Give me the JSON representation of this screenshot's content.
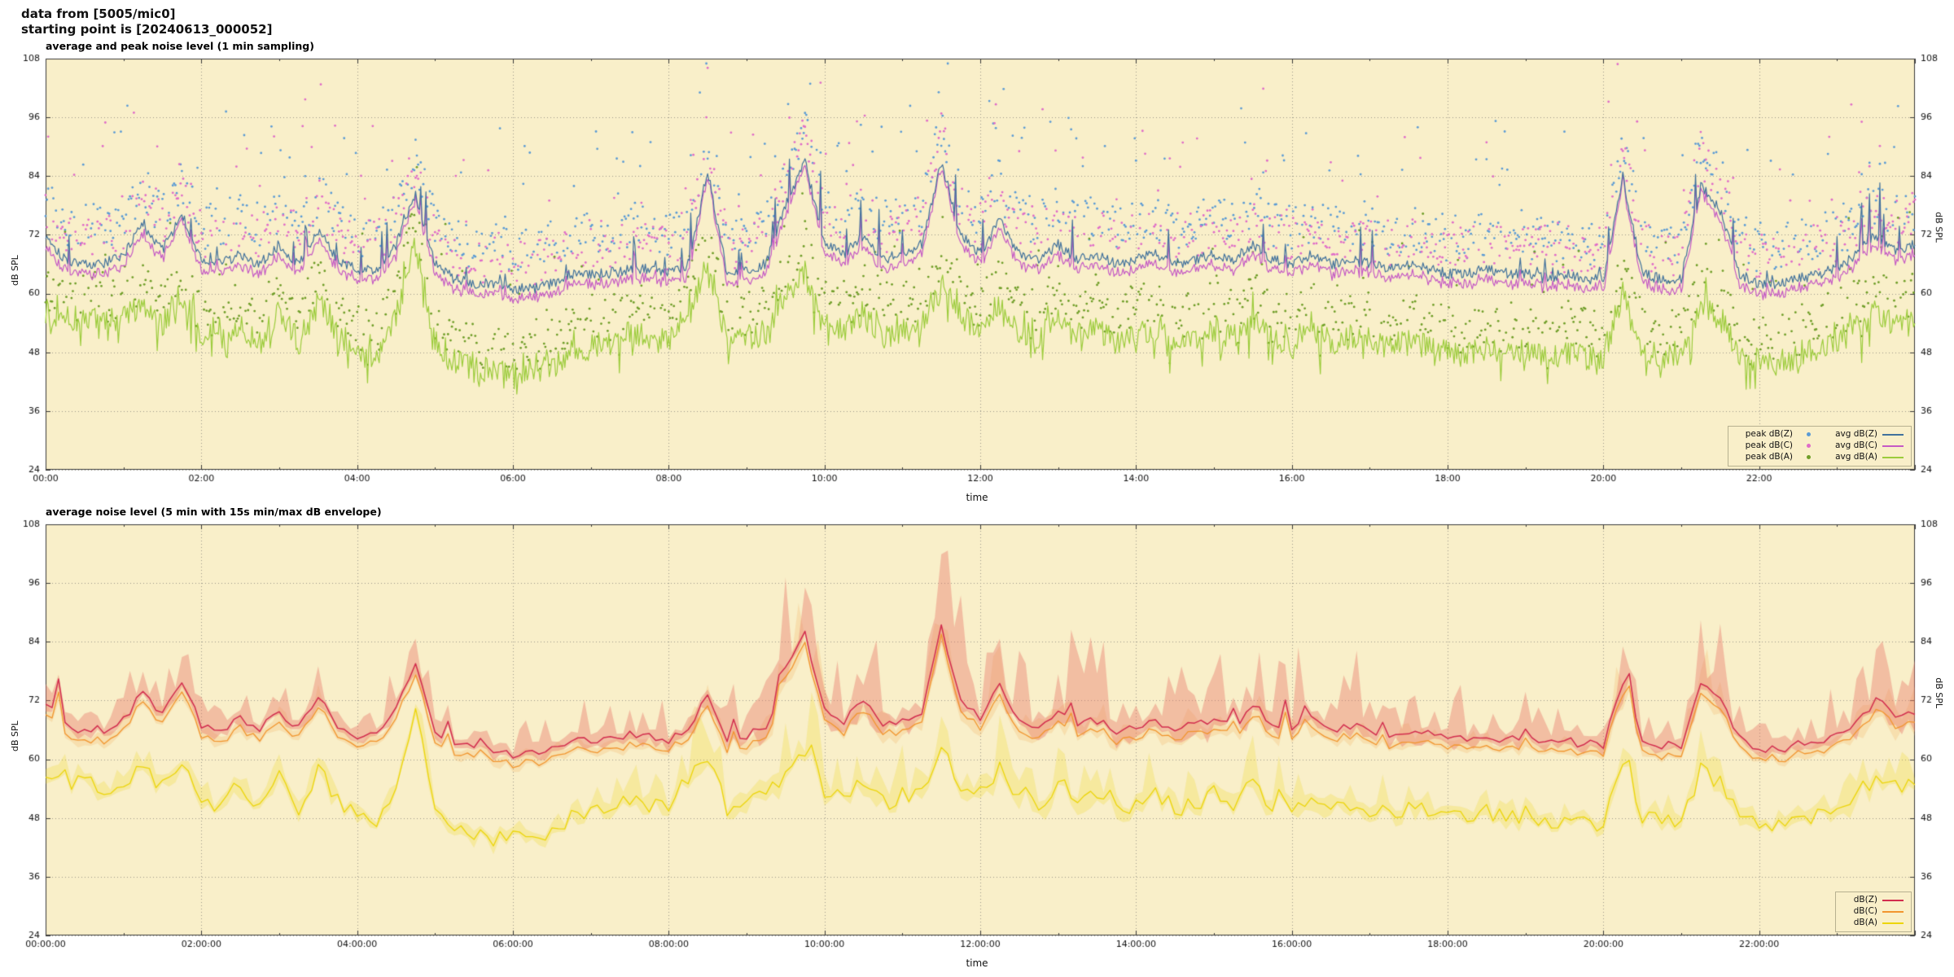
{
  "header": {
    "line1": "data from [5005/mic0]",
    "line2": "starting point is [20240613_000052]"
  },
  "colors": {
    "page_bg": "#ffffff",
    "plot_bg": "#f9efc9",
    "grid": "#9b988a",
    "axis": "#3a3a3a",
    "text": "#111111"
  },
  "chart_data": [
    {
      "type": "line+scatter",
      "title": "average and peak noise level (1 min sampling)",
      "xlabel": "time",
      "ylabel": "dB SPL",
      "ylim": [
        24,
        108
      ],
      "yticks": [
        24,
        36,
        48,
        60,
        72,
        84,
        96,
        108
      ],
      "xtick_minutes": [
        0,
        120,
        240,
        360,
        480,
        600,
        720,
        840,
        960,
        1080,
        1200,
        1320
      ],
      "xtick_labels": [
        "00:00",
        "02:00",
        "04:00",
        "06:00",
        "08:00",
        "10:00",
        "12:00",
        "14:00",
        "16:00",
        "18:00",
        "20:00",
        "22:00"
      ],
      "minutes_total": 1440,
      "anchor_step_min": 15,
      "grid": "dotted",
      "legend_position": "bottom-right",
      "lines": [
        {
          "name": "avg dB(Z)",
          "color": "#41719c",
          "jitter": 1.1,
          "spike_prob": 0.06,
          "spike_amp": 7,
          "anchors": [
            72,
            67,
            66,
            66,
            68,
            74,
            69,
            76,
            67,
            66,
            68,
            66,
            70,
            66,
            73,
            67,
            65,
            65,
            70,
            80,
            66,
            63,
            62,
            62,
            61,
            61,
            62,
            64,
            64,
            64,
            65,
            65,
            64,
            66,
            85,
            64,
            65,
            66,
            78,
            87,
            70,
            68,
            72,
            67,
            68,
            70,
            87,
            72,
            68,
            75,
            68,
            67,
            70,
            67,
            68,
            66,
            67,
            68,
            66,
            67,
            68,
            67,
            70,
            67,
            66,
            68,
            66,
            67,
            66,
            65,
            66,
            65,
            64,
            64,
            65,
            64,
            64,
            63,
            64,
            63,
            63,
            84,
            64,
            63,
            63,
            82,
            77,
            64,
            62,
            62,
            63,
            64,
            65,
            68,
            72,
            69,
            70
          ]
        },
        {
          "name": "avg dB(C)",
          "color": "#c55ac5",
          "jitter": 0.5,
          "follow_index": 0,
          "follow_scale": 0.9,
          "anchors": [
            70,
            65,
            64,
            64,
            66,
            72,
            67,
            75,
            65,
            64,
            66,
            64,
            68,
            64,
            71,
            65,
            63,
            63,
            68,
            79,
            64,
            61,
            60,
            60,
            59,
            59,
            60,
            62,
            62,
            62,
            63,
            63,
            62,
            64,
            84,
            62,
            63,
            64,
            76,
            86,
            68,
            66,
            70,
            65,
            66,
            68,
            86,
            70,
            66,
            73,
            66,
            65,
            68,
            65,
            66,
            64,
            65,
            66,
            64,
            65,
            66,
            65,
            68,
            65,
            64,
            66,
            64,
            65,
            64,
            63,
            64,
            63,
            62,
            62,
            63,
            62,
            62,
            61,
            62,
            61,
            61,
            83,
            62,
            61,
            61,
            81,
            75,
            62,
            60,
            60,
            61,
            62,
            63,
            66,
            70,
            67,
            68
          ]
        },
        {
          "name": "avg dB(A)",
          "color": "#9ccc3c",
          "jitter": 2.7,
          "spike_prob": 0.1,
          "spike_amp": 9,
          "dip_prob": 0.1,
          "dip_amp": 6,
          "anchors": [
            56,
            55,
            55,
            54,
            55,
            58,
            54,
            60,
            52,
            50,
            53,
            50,
            56,
            50,
            58,
            52,
            48,
            47,
            55,
            70,
            50,
            46,
            45,
            44,
            44,
            44,
            45,
            48,
            49,
            50,
            52,
            51,
            50,
            56,
            66,
            50,
            51,
            52,
            60,
            64,
            54,
            52,
            56,
            51,
            52,
            54,
            62,
            55,
            53,
            58,
            52,
            51,
            55,
            52,
            53,
            50,
            51,
            53,
            50,
            51,
            53,
            51,
            55,
            51,
            50,
            53,
            50,
            51,
            50,
            49,
            50,
            49,
            48,
            48,
            49,
            48,
            48,
            47,
            48,
            47,
            47,
            60,
            48,
            47,
            47,
            58,
            55,
            48,
            46,
            46,
            47,
            48,
            50,
            53,
            56,
            54,
            55
          ]
        }
      ],
      "peaks": [
        {
          "name": "peak dB(Z)",
          "color": "#5b9bd5",
          "base_index": 0,
          "offset_min": 3,
          "offset_rand": 9,
          "burst_prob": 0.08,
          "burst_min": 8,
          "burst_rand": 14,
          "typical_range_db": [
            70,
            95
          ]
        },
        {
          "name": "peak dB(C)",
          "color": "#e06cc8",
          "base_index": 1,
          "offset_min": 3,
          "offset_rand": 9,
          "burst_prob": 0.08,
          "burst_min": 8,
          "burst_rand": 14,
          "typical_range_db": [
            68,
            93
          ]
        },
        {
          "name": "peak dB(A)",
          "color": "#6f9e28",
          "base_index": 2,
          "offset_min": 2,
          "offset_rand": 7,
          "burst_prob": 0.06,
          "burst_min": 6,
          "burst_rand": 10,
          "typical_range_db": [
            48,
            76
          ]
        }
      ]
    },
    {
      "type": "line+envelope",
      "title": "average noise level (5 min with 15s min/max dB envelope)",
      "xlabel": "time",
      "ylabel": "dB SPL",
      "ylim": [
        24,
        108
      ],
      "yticks": [
        24,
        36,
        48,
        60,
        72,
        84,
        96,
        108
      ],
      "xtick_minutes": [
        0,
        120,
        240,
        360,
        480,
        600,
        720,
        840,
        960,
        1080,
        1200,
        1320
      ],
      "xtick_labels": [
        "00:00:00",
        "02:00:00",
        "04:00:00",
        "06:00:00",
        "08:00:00",
        "10:00:00",
        "12:00:00",
        "14:00:00",
        "16:00:00",
        "18:00:00",
        "20:00:00",
        "22:00:00"
      ],
      "minutes_total": 1440,
      "anchor_step_min": 15,
      "sample_step_min": 5,
      "grid": "dotted",
      "legend_position": "bottom-right",
      "lines": [
        {
          "name": "dB(Z)",
          "color": "#d22d4e",
          "jitter": 0.9,
          "spike_prob": 0.06,
          "spike_amp": 6,
          "envelope": {
            "color": "rgba(232,118,106,0.40)",
            "up": 12.5,
            "down": 3,
            "ref": 60
          },
          "anchors": [
            72,
            67,
            66,
            66,
            68,
            74,
            69,
            76,
            67,
            66,
            68,
            66,
            70,
            66,
            73,
            67,
            65,
            65,
            70,
            79,
            66,
            63,
            62,
            62,
            61,
            61,
            62,
            64,
            64,
            64,
            65,
            65,
            64,
            66,
            73,
            64,
            65,
            66,
            78,
            86,
            70,
            68,
            72,
            67,
            68,
            70,
            87,
            72,
            68,
            75,
            68,
            67,
            70,
            67,
            68,
            66,
            67,
            68,
            66,
            67,
            68,
            67,
            70,
            67,
            66,
            68,
            66,
            67,
            66,
            65,
            66,
            65,
            64,
            64,
            65,
            64,
            64,
            63,
            64,
            63,
            63,
            76,
            64,
            63,
            63,
            75,
            72,
            64,
            62,
            62,
            63,
            64,
            65,
            68,
            72,
            69,
            70
          ]
        },
        {
          "name": "dB(C)",
          "color": "#f2952e",
          "jitter": 0.4,
          "follow_index": 0,
          "follow_scale": 0.9,
          "envelope": {
            "color": "rgba(240,160,70,0.20)",
            "up": 6,
            "down": 2,
            "ref": 60
          },
          "anchors": [
            70,
            65,
            64,
            64,
            66,
            72,
            67,
            74,
            65,
            64,
            66,
            64,
            68,
            64,
            71,
            65,
            63,
            63,
            68,
            77,
            64,
            61,
            60,
            60,
            59,
            59,
            60,
            62,
            62,
            62,
            63,
            63,
            62,
            64,
            71,
            62,
            63,
            64,
            76,
            84,
            68,
            66,
            70,
            65,
            66,
            68,
            85,
            70,
            66,
            73,
            66,
            65,
            68,
            65,
            66,
            64,
            65,
            66,
            64,
            65,
            66,
            65,
            68,
            65,
            64,
            66,
            64,
            65,
            64,
            63,
            64,
            63,
            62,
            62,
            63,
            62,
            62,
            61,
            62,
            61,
            61,
            74,
            62,
            61,
            61,
            73,
            70,
            62,
            60,
            60,
            61,
            62,
            63,
            66,
            70,
            67,
            68
          ]
        },
        {
          "name": "dB(A)",
          "color": "#ecd50a",
          "jitter": 1.8,
          "spike_prob": 0.1,
          "spike_amp": 6,
          "envelope": {
            "color": "rgba(238,214,30,0.25)",
            "up": 6,
            "down": 2.5,
            "ref": 44
          },
          "anchors": [
            56,
            55,
            55,
            54,
            55,
            58,
            54,
            60,
            52,
            50,
            53,
            50,
            56,
            50,
            58,
            52,
            48,
            47,
            55,
            70,
            50,
            46,
            45,
            44,
            44,
            44,
            45,
            48,
            49,
            50,
            52,
            51,
            50,
            56,
            60,
            50,
            51,
            52,
            58,
            62,
            54,
            52,
            56,
            51,
            52,
            54,
            62,
            55,
            53,
            58,
            52,
            51,
            55,
            52,
            53,
            50,
            51,
            53,
            50,
            51,
            53,
            51,
            55,
            51,
            50,
            53,
            50,
            51,
            50,
            49,
            50,
            49,
            48,
            48,
            49,
            48,
            48,
            47,
            48,
            47,
            47,
            60,
            48,
            47,
            47,
            58,
            55,
            48,
            46,
            46,
            47,
            48,
            50,
            53,
            56,
            54,
            55
          ]
        }
      ]
    }
  ]
}
